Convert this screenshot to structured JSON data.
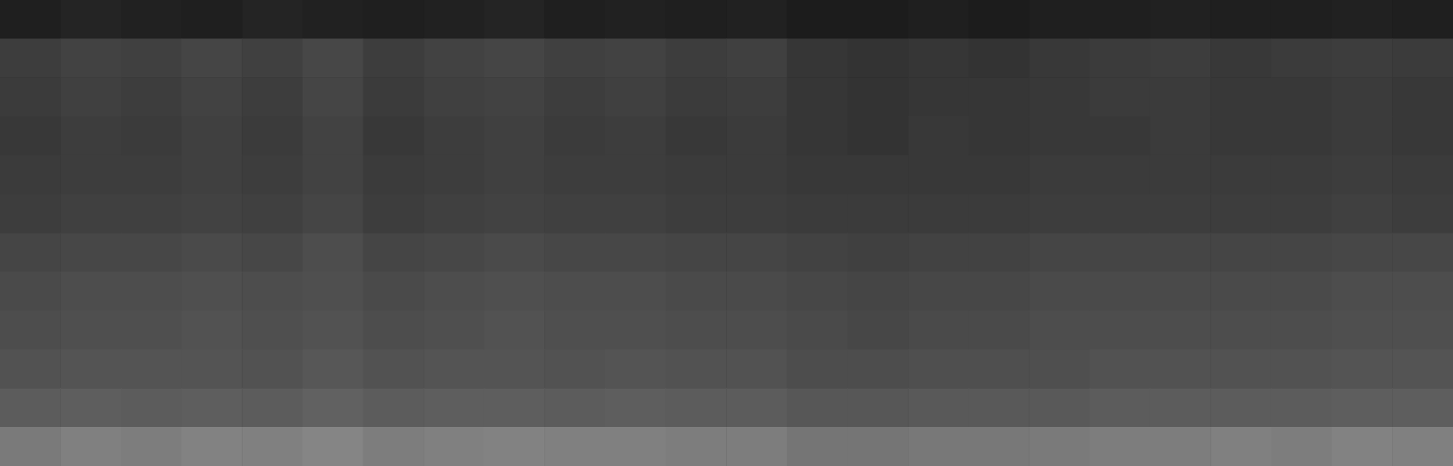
{
  "chart_data": {
    "type": "heatmap",
    "tick_labels": false,
    "grid": false,
    "colors": [
      "#000000",
      "#ffffff"
    ],
    "zlim": [
      0,
      100
    ],
    "cells": [
      [
        12,
        14,
        13,
        12,
        14,
        13,
        12,
        13,
        14,
        12,
        13,
        12,
        13,
        11,
        11,
        12,
        11,
        12,
        12,
        13,
        12,
        12,
        13,
        12
      ],
      [
        24,
        26,
        25,
        27,
        25,
        28,
        24,
        26,
        27,
        25,
        26,
        24,
        25,
        21,
        20,
        21,
        20,
        22,
        23,
        24,
        22,
        23,
        24,
        23
      ],
      [
        23,
        25,
        24,
        26,
        24,
        27,
        23,
        25,
        26,
        24,
        25,
        23,
        24,
        21,
        20,
        21,
        21,
        22,
        23,
        23,
        22,
        22,
        23,
        22
      ],
      [
        22,
        24,
        23,
        25,
        23,
        26,
        22,
        24,
        25,
        23,
        24,
        22,
        23,
        21,
        20,
        22,
        21,
        22,
        22,
        23,
        22,
        22,
        23,
        22
      ],
      [
        23,
        24,
        24,
        25,
        24,
        26,
        23,
        24,
        25,
        24,
        24,
        23,
        23,
        22,
        22,
        22,
        22,
        23,
        23,
        23,
        23,
        23,
        24,
        23
      ],
      [
        24,
        25,
        25,
        26,
        25,
        27,
        24,
        25,
        26,
        25,
        25,
        24,
        24,
        23,
        23,
        23,
        23,
        24,
        24,
        24,
        24,
        24,
        25,
        24
      ],
      [
        27,
        28,
        28,
        29,
        28,
        30,
        27,
        28,
        29,
        28,
        28,
        27,
        27,
        26,
        25,
        26,
        26,
        27,
        27,
        27,
        27,
        27,
        28,
        28
      ],
      [
        29,
        30,
        30,
        31,
        30,
        31,
        29,
        30,
        31,
        30,
        30,
        29,
        29,
        28,
        27,
        28,
        28,
        29,
        29,
        29,
        29,
        29,
        30,
        30
      ],
      [
        30,
        31,
        31,
        32,
        31,
        32,
        30,
        31,
        32,
        31,
        31,
        30,
        30,
        29,
        28,
        29,
        29,
        30,
        30,
        30,
        30,
        30,
        31,
        31
      ],
      [
        32,
        33,
        33,
        33,
        32,
        34,
        32,
        33,
        33,
        32,
        33,
        32,
        32,
        30,
        30,
        31,
        31,
        31,
        32,
        32,
        32,
        32,
        33,
        33
      ],
      [
        36,
        37,
        36,
        37,
        36,
        38,
        36,
        37,
        37,
        36,
        37,
        36,
        36,
        34,
        34,
        35,
        35,
        35,
        36,
        36,
        36,
        36,
        37,
        37
      ],
      [
        48,
        50,
        49,
        51,
        50,
        52,
        49,
        50,
        51,
        50,
        50,
        49,
        49,
        46,
        46,
        47,
        47,
        48,
        49,
        49,
        50,
        49,
        51,
        50
      ]
    ]
  }
}
